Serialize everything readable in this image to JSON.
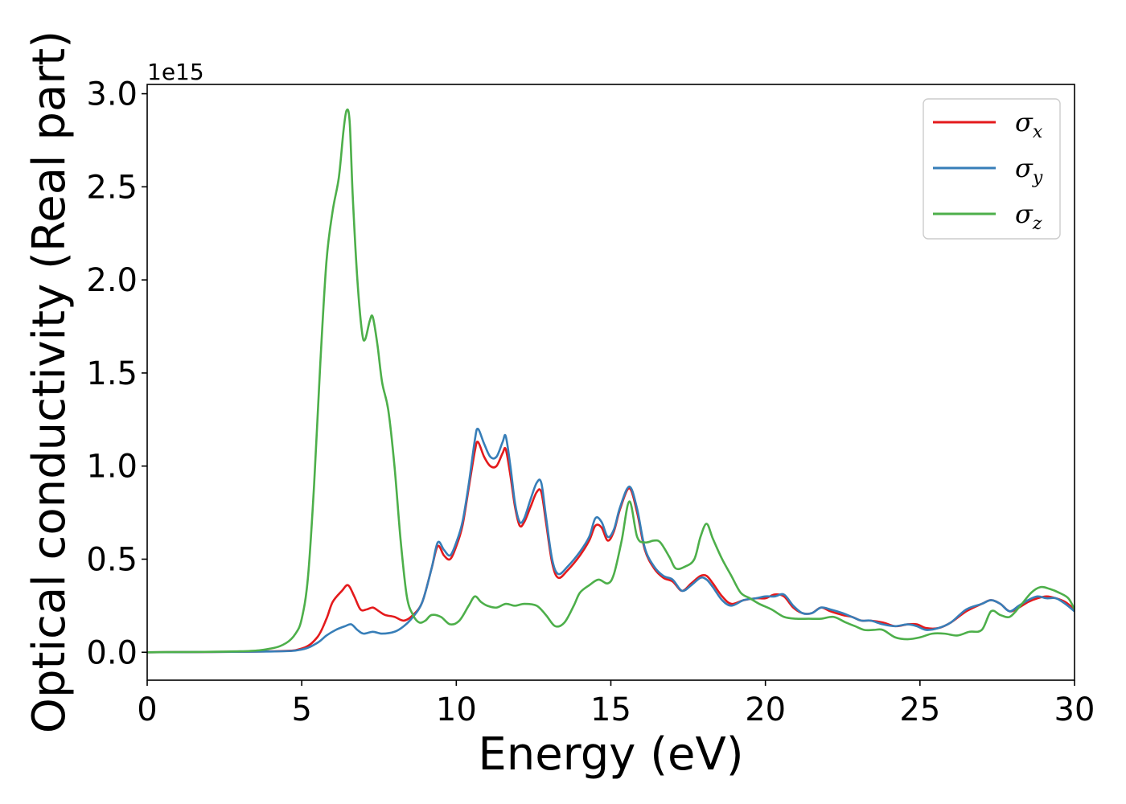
{
  "chart_data": {
    "type": "line",
    "title": "",
    "xlabel": "Energy (eV)",
    "ylabel": "Optical conductivity (Real part)",
    "y_offset_label": "1e15",
    "xlim": [
      0,
      30
    ],
    "ylim": [
      -0.15,
      3.05
    ],
    "x_ticks": [
      0,
      5,
      10,
      15,
      20,
      25,
      30
    ],
    "x_tick_labels": [
      "0",
      "5",
      "10",
      "15",
      "20",
      "25",
      "30"
    ],
    "y_ticks": [
      0.0,
      0.5,
      1.0,
      1.5,
      2.0,
      2.5,
      3.0
    ],
    "y_tick_labels": [
      "0.0",
      "0.5",
      "1.0",
      "1.5",
      "2.0",
      "2.5",
      "3.0"
    ],
    "grid": false,
    "legend_position": "top-right",
    "series": [
      {
        "name": "σx",
        "symbol": "σ",
        "subscript": "x",
        "color": "#e41a1c",
        "points": [
          [
            0,
            0
          ],
          [
            4,
            0.005
          ],
          [
            5,
            0.02
          ],
          [
            5.5,
            0.08
          ],
          [
            5.8,
            0.18
          ],
          [
            6.0,
            0.27
          ],
          [
            6.3,
            0.33
          ],
          [
            6.5,
            0.36
          ],
          [
            6.7,
            0.3
          ],
          [
            6.9,
            0.23
          ],
          [
            7.1,
            0.23
          ],
          [
            7.3,
            0.24
          ],
          [
            7.5,
            0.22
          ],
          [
            7.7,
            0.2
          ],
          [
            8.0,
            0.19
          ],
          [
            8.3,
            0.17
          ],
          [
            8.6,
            0.2
          ],
          [
            8.9,
            0.27
          ],
          [
            9.2,
            0.45
          ],
          [
            9.4,
            0.57
          ],
          [
            9.6,
            0.52
          ],
          [
            9.8,
            0.5
          ],
          [
            10.0,
            0.57
          ],
          [
            10.2,
            0.68
          ],
          [
            10.4,
            0.88
          ],
          [
            10.6,
            1.08
          ],
          [
            10.7,
            1.13
          ],
          [
            10.9,
            1.05
          ],
          [
            11.1,
            1.0
          ],
          [
            11.3,
            1.0
          ],
          [
            11.5,
            1.07
          ],
          [
            11.6,
            1.09
          ],
          [
            11.75,
            0.95
          ],
          [
            11.9,
            0.78
          ],
          [
            12.05,
            0.68
          ],
          [
            12.2,
            0.7
          ],
          [
            12.4,
            0.78
          ],
          [
            12.6,
            0.86
          ],
          [
            12.75,
            0.86
          ],
          [
            12.9,
            0.7
          ],
          [
            13.1,
            0.48
          ],
          [
            13.3,
            0.4
          ],
          [
            13.6,
            0.44
          ],
          [
            14.0,
            0.52
          ],
          [
            14.3,
            0.6
          ],
          [
            14.5,
            0.68
          ],
          [
            14.7,
            0.67
          ],
          [
            14.9,
            0.6
          ],
          [
            15.1,
            0.65
          ],
          [
            15.3,
            0.77
          ],
          [
            15.6,
            0.88
          ],
          [
            15.85,
            0.75
          ],
          [
            16.1,
            0.55
          ],
          [
            16.4,
            0.45
          ],
          [
            16.7,
            0.4
          ],
          [
            17.0,
            0.38
          ],
          [
            17.3,
            0.33
          ],
          [
            17.6,
            0.37
          ],
          [
            17.9,
            0.41
          ],
          [
            18.1,
            0.41
          ],
          [
            18.3,
            0.37
          ],
          [
            18.6,
            0.3
          ],
          [
            18.9,
            0.26
          ],
          [
            19.3,
            0.28
          ],
          [
            19.7,
            0.29
          ],
          [
            20.0,
            0.29
          ],
          [
            20.3,
            0.31
          ],
          [
            20.6,
            0.3
          ],
          [
            20.9,
            0.24
          ],
          [
            21.2,
            0.21
          ],
          [
            21.5,
            0.21
          ],
          [
            21.8,
            0.24
          ],
          [
            22.1,
            0.22
          ],
          [
            22.5,
            0.2
          ],
          [
            22.8,
            0.19
          ],
          [
            23.1,
            0.17
          ],
          [
            23.4,
            0.17
          ],
          [
            23.8,
            0.16
          ],
          [
            24.2,
            0.14
          ],
          [
            24.6,
            0.15
          ],
          [
            24.9,
            0.15
          ],
          [
            25.2,
            0.13
          ],
          [
            25.6,
            0.13
          ],
          [
            26.0,
            0.16
          ],
          [
            26.5,
            0.22
          ],
          [
            27.0,
            0.26
          ],
          [
            27.3,
            0.28
          ],
          [
            27.6,
            0.26
          ],
          [
            27.9,
            0.22
          ],
          [
            28.2,
            0.24
          ],
          [
            28.5,
            0.27
          ],
          [
            28.8,
            0.29
          ],
          [
            29.1,
            0.3
          ],
          [
            29.4,
            0.29
          ],
          [
            29.7,
            0.27
          ],
          [
            30,
            0.23
          ]
        ]
      },
      {
        "name": "σy",
        "symbol": "σ",
        "subscript": "y",
        "color": "#377eb8",
        "points": [
          [
            0,
            0
          ],
          [
            4,
            0.004
          ],
          [
            5,
            0.015
          ],
          [
            5.5,
            0.05
          ],
          [
            5.8,
            0.09
          ],
          [
            6.1,
            0.12
          ],
          [
            6.4,
            0.14
          ],
          [
            6.6,
            0.15
          ],
          [
            6.8,
            0.12
          ],
          [
            7.0,
            0.1
          ],
          [
            7.3,
            0.11
          ],
          [
            7.6,
            0.1
          ],
          [
            8.0,
            0.11
          ],
          [
            8.3,
            0.14
          ],
          [
            8.6,
            0.19
          ],
          [
            8.9,
            0.27
          ],
          [
            9.2,
            0.45
          ],
          [
            9.4,
            0.59
          ],
          [
            9.6,
            0.55
          ],
          [
            9.8,
            0.52
          ],
          [
            10.0,
            0.59
          ],
          [
            10.2,
            0.7
          ],
          [
            10.4,
            0.9
          ],
          [
            10.6,
            1.14
          ],
          [
            10.7,
            1.2
          ],
          [
            10.9,
            1.12
          ],
          [
            11.1,
            1.05
          ],
          [
            11.3,
            1.05
          ],
          [
            11.5,
            1.13
          ],
          [
            11.6,
            1.16
          ],
          [
            11.75,
            1.0
          ],
          [
            11.9,
            0.8
          ],
          [
            12.05,
            0.7
          ],
          [
            12.2,
            0.72
          ],
          [
            12.4,
            0.82
          ],
          [
            12.6,
            0.91
          ],
          [
            12.75,
            0.91
          ],
          [
            12.9,
            0.73
          ],
          [
            13.1,
            0.5
          ],
          [
            13.3,
            0.42
          ],
          [
            13.6,
            0.46
          ],
          [
            14.0,
            0.54
          ],
          [
            14.3,
            0.62
          ],
          [
            14.5,
            0.72
          ],
          [
            14.7,
            0.7
          ],
          [
            14.9,
            0.62
          ],
          [
            15.1,
            0.66
          ],
          [
            15.3,
            0.78
          ],
          [
            15.6,
            0.89
          ],
          [
            15.85,
            0.77
          ],
          [
            16.1,
            0.56
          ],
          [
            16.4,
            0.46
          ],
          [
            16.7,
            0.41
          ],
          [
            17.0,
            0.39
          ],
          [
            17.3,
            0.33
          ],
          [
            17.6,
            0.36
          ],
          [
            17.9,
            0.4
          ],
          [
            18.1,
            0.39
          ],
          [
            18.3,
            0.35
          ],
          [
            18.6,
            0.28
          ],
          [
            18.9,
            0.25
          ],
          [
            19.3,
            0.28
          ],
          [
            19.7,
            0.29
          ],
          [
            20.0,
            0.3
          ],
          [
            20.3,
            0.3
          ],
          [
            20.6,
            0.31
          ],
          [
            20.9,
            0.25
          ],
          [
            21.2,
            0.21
          ],
          [
            21.5,
            0.21
          ],
          [
            21.8,
            0.24
          ],
          [
            22.1,
            0.23
          ],
          [
            22.5,
            0.21
          ],
          [
            22.8,
            0.19
          ],
          [
            23.1,
            0.17
          ],
          [
            23.4,
            0.17
          ],
          [
            23.8,
            0.15
          ],
          [
            24.2,
            0.14
          ],
          [
            24.6,
            0.15
          ],
          [
            24.9,
            0.14
          ],
          [
            25.2,
            0.12
          ],
          [
            25.6,
            0.13
          ],
          [
            26.0,
            0.16
          ],
          [
            26.5,
            0.23
          ],
          [
            27.0,
            0.26
          ],
          [
            27.3,
            0.28
          ],
          [
            27.6,
            0.26
          ],
          [
            27.9,
            0.22
          ],
          [
            28.2,
            0.25
          ],
          [
            28.5,
            0.28
          ],
          [
            28.8,
            0.3
          ],
          [
            29.1,
            0.29
          ],
          [
            29.4,
            0.29
          ],
          [
            29.7,
            0.26
          ],
          [
            30,
            0.22
          ]
        ]
      },
      {
        "name": "σz",
        "symbol": "σ",
        "subscript": "z",
        "color": "#4daf4a",
        "points": [
          [
            0,
            0
          ],
          [
            3,
            0.005
          ],
          [
            4,
            0.02
          ],
          [
            4.5,
            0.05
          ],
          [
            4.8,
            0.1
          ],
          [
            5.0,
            0.18
          ],
          [
            5.2,
            0.4
          ],
          [
            5.4,
            0.9
          ],
          [
            5.6,
            1.55
          ],
          [
            5.8,
            2.1
          ],
          [
            6.0,
            2.37
          ],
          [
            6.2,
            2.55
          ],
          [
            6.35,
            2.8
          ],
          [
            6.45,
            2.91
          ],
          [
            6.55,
            2.85
          ],
          [
            6.65,
            2.45
          ],
          [
            6.8,
            2.0
          ],
          [
            6.95,
            1.72
          ],
          [
            7.05,
            1.68
          ],
          [
            7.2,
            1.78
          ],
          [
            7.3,
            1.8
          ],
          [
            7.45,
            1.65
          ],
          [
            7.6,
            1.45
          ],
          [
            7.8,
            1.3
          ],
          [
            8.0,
            1.0
          ],
          [
            8.2,
            0.6
          ],
          [
            8.4,
            0.3
          ],
          [
            8.6,
            0.2
          ],
          [
            8.8,
            0.16
          ],
          [
            9.0,
            0.17
          ],
          [
            9.2,
            0.2
          ],
          [
            9.5,
            0.19
          ],
          [
            9.8,
            0.15
          ],
          [
            10.1,
            0.17
          ],
          [
            10.4,
            0.25
          ],
          [
            10.6,
            0.3
          ],
          [
            10.8,
            0.27
          ],
          [
            11.0,
            0.25
          ],
          [
            11.3,
            0.24
          ],
          [
            11.6,
            0.26
          ],
          [
            11.9,
            0.25
          ],
          [
            12.2,
            0.26
          ],
          [
            12.6,
            0.25
          ],
          [
            12.9,
            0.2
          ],
          [
            13.2,
            0.14
          ],
          [
            13.5,
            0.16
          ],
          [
            13.8,
            0.25
          ],
          [
            14.0,
            0.32
          ],
          [
            14.3,
            0.36
          ],
          [
            14.6,
            0.39
          ],
          [
            14.9,
            0.37
          ],
          [
            15.1,
            0.42
          ],
          [
            15.35,
            0.6
          ],
          [
            15.6,
            0.81
          ],
          [
            15.85,
            0.62
          ],
          [
            16.1,
            0.59
          ],
          [
            16.4,
            0.6
          ],
          [
            16.6,
            0.59
          ],
          [
            16.9,
            0.51
          ],
          [
            17.1,
            0.45
          ],
          [
            17.4,
            0.46
          ],
          [
            17.7,
            0.5
          ],
          [
            17.9,
            0.62
          ],
          [
            18.1,
            0.69
          ],
          [
            18.3,
            0.61
          ],
          [
            18.6,
            0.5
          ],
          [
            18.9,
            0.41
          ],
          [
            19.2,
            0.32
          ],
          [
            19.5,
            0.29
          ],
          [
            19.8,
            0.26
          ],
          [
            20.2,
            0.23
          ],
          [
            20.6,
            0.19
          ],
          [
            21.0,
            0.18
          ],
          [
            21.4,
            0.18
          ],
          [
            21.8,
            0.18
          ],
          [
            22.2,
            0.19
          ],
          [
            22.6,
            0.16
          ],
          [
            22.9,
            0.14
          ],
          [
            23.2,
            0.12
          ],
          [
            23.5,
            0.12
          ],
          [
            23.8,
            0.12
          ],
          [
            24.2,
            0.08
          ],
          [
            24.6,
            0.07
          ],
          [
            25.0,
            0.08
          ],
          [
            25.4,
            0.1
          ],
          [
            25.8,
            0.1
          ],
          [
            26.2,
            0.09
          ],
          [
            26.6,
            0.11
          ],
          [
            27.0,
            0.12
          ],
          [
            27.3,
            0.22
          ],
          [
            27.6,
            0.2
          ],
          [
            27.9,
            0.19
          ],
          [
            28.2,
            0.24
          ],
          [
            28.6,
            0.32
          ],
          [
            28.9,
            0.35
          ],
          [
            29.2,
            0.34
          ],
          [
            29.5,
            0.32
          ],
          [
            29.8,
            0.29
          ],
          [
            30,
            0.23
          ]
        ]
      }
    ]
  }
}
